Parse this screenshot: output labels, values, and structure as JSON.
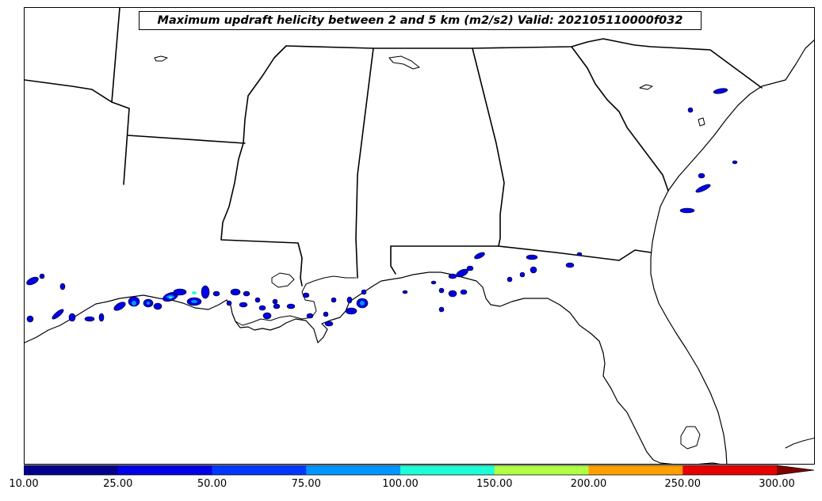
{
  "title": "Maximum updraft helicity between 2 and 5 km (m2/s2) Valid: 202105110000f032",
  "colorbar": {
    "bins": [
      {
        "lo": "10.00",
        "hi": "25.00",
        "color": "#00008c"
      },
      {
        "lo": "25.00",
        "hi": "50.00",
        "color": "#0000e6"
      },
      {
        "lo": "50.00",
        "hi": "75.00",
        "color": "#0038ff"
      },
      {
        "lo": "75.00",
        "hi": "100.00",
        "color": "#0096ff"
      },
      {
        "lo": "100.00",
        "hi": "150.00",
        "color": "#1effd8"
      },
      {
        "lo": "150.00",
        "hi": "200.00",
        "color": "#b0ff46"
      },
      {
        "lo": "200.00",
        "hi": "250.00",
        "color": "#ffa000"
      },
      {
        "lo": "250.00",
        "hi": "300.00",
        "color": "#e60000"
      }
    ],
    "over_color": "#800000",
    "labels": [
      "10.00",
      "25.00",
      "50.00",
      "75.00",
      "100.00",
      "150.00",
      "200.00",
      "250.00",
      "300.00"
    ]
  },
  "map": {
    "region": "Southeastern United States and Gulf of Mexico coast",
    "boundary_color": "#000000",
    "land_color": "#ffffff"
  }
}
